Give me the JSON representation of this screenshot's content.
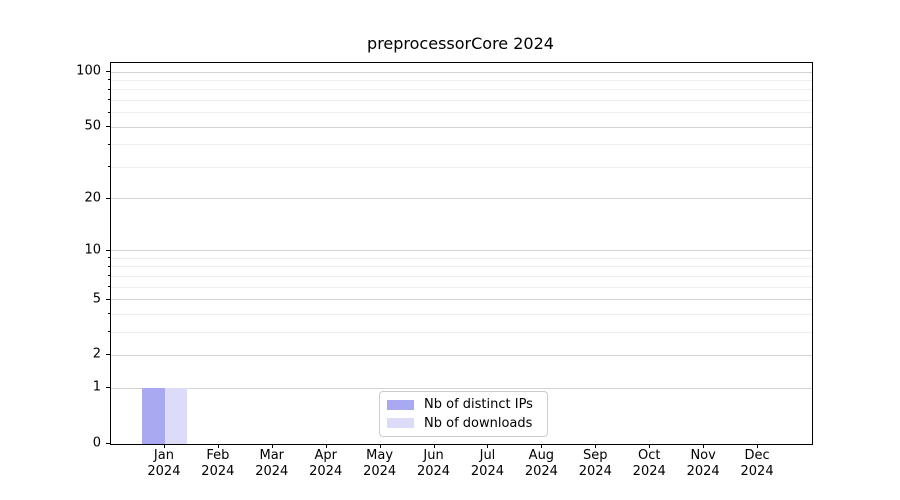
{
  "chart_data": {
    "type": "bar",
    "title": "preprocessorCore 2024",
    "categories": [
      "Jan 2024",
      "Feb 2024",
      "Mar 2024",
      "Apr 2024",
      "May 2024",
      "Jun 2024",
      "Jul 2024",
      "Aug 2024",
      "Sep 2024",
      "Oct 2024",
      "Nov 2024",
      "Dec 2024"
    ],
    "series": [
      {
        "name": "Nb of distinct IPs",
        "color": "#a9a9f2",
        "values": [
          1,
          0,
          0,
          0,
          0,
          0,
          0,
          0,
          0,
          0,
          0,
          0
        ]
      },
      {
        "name": "Nb of downloads",
        "color": "#dcdcf8",
        "values": [
          1,
          0,
          0,
          0,
          0,
          0,
          0,
          0,
          0,
          0,
          0,
          0
        ]
      }
    ],
    "xlabel": "",
    "ylabel": "",
    "y_scale": "log1p",
    "y_ticks": [
      0,
      1,
      2,
      5,
      10,
      20,
      50,
      100
    ],
    "y_minor_ticks": [
      3,
      4,
      6,
      7,
      8,
      9,
      30,
      40,
      60,
      70,
      80,
      90
    ],
    "ylim": [
      0,
      112
    ],
    "grid": "horizontal",
    "legend_position": "lower center",
    "colors": {
      "major_grid": "#d4d4d4",
      "minor_grid": "#efefef",
      "axis": "#000000",
      "background": "#ffffff"
    }
  }
}
